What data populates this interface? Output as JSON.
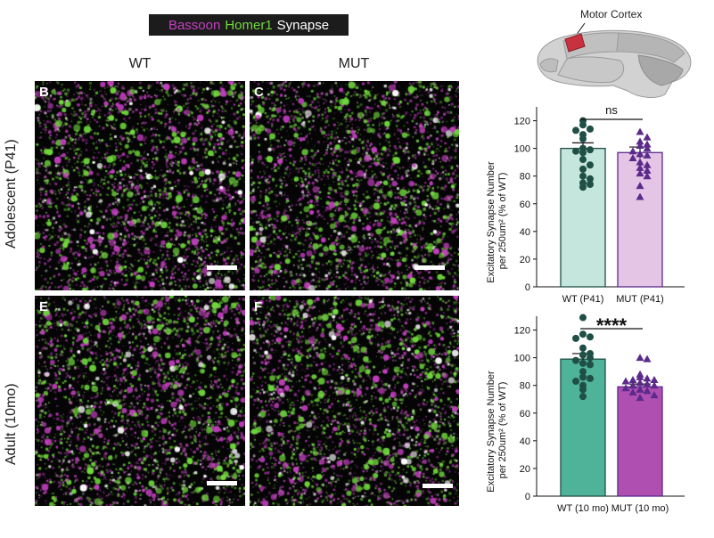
{
  "legend": {
    "bassoon": "Bassoon",
    "homer1": "Homer1",
    "synapse": "Synapse"
  },
  "columns": {
    "wt": "WT",
    "mut": "MUT"
  },
  "rows": {
    "adolescent": "Adolescent (P41)",
    "adult": "Adult (10mo)"
  },
  "panels": {
    "b": "B",
    "c": "C",
    "e": "E",
    "f": "F"
  },
  "brain": {
    "label": "Motor Cortex"
  },
  "colors": {
    "bassoon": "#c63fc2",
    "homer1": "#6fd93b",
    "synapse": "#ffffff",
    "wt_p41_fill": "#c5e6dd",
    "mut_p41_fill": "#e5c5e6",
    "wt_10mo_fill": "#4fb39a",
    "mut_10mo_fill": "#b04fb2",
    "wt_dot": "#1f4f45",
    "mut_dot": "#5b2a8a"
  },
  "chart_data": [
    {
      "type": "bar",
      "categories": [
        "WT (P41)",
        "MUT (P41)"
      ],
      "values": [
        100,
        97
      ],
      "errors": [
        4,
        4
      ],
      "ylabel_line1": "Excitatory Synapse Number",
      "ylabel_line2": "per 250um² (% of WT)",
      "ylim": [
        0,
        130
      ],
      "yticks": [
        "0",
        "20",
        "40",
        "60",
        "80",
        "100",
        "120"
      ],
      "significance": "ns",
      "points": [
        [
          120,
          117,
          114,
          113,
          110,
          107,
          100,
          99,
          98,
          97,
          92,
          88,
          85,
          80,
          78,
          75,
          74,
          72
        ],
        [
          112,
          108,
          105,
          103,
          102,
          100,
          98,
          96,
          95,
          93,
          90,
          88,
          86,
          84,
          82,
          80,
          73,
          65
        ]
      ]
    },
    {
      "type": "bar",
      "categories": [
        "WT (10 mo)",
        "MUT (10 mo)"
      ],
      "values": [
        99,
        79
      ],
      "errors": [
        4,
        2
      ],
      "ylabel_line1": "Excitatory Synapse Number",
      "ylabel_line2": "per 250um² (% of WT)",
      "ylim": [
        0,
        130
      ],
      "yticks": [
        "0",
        "20",
        "40",
        "60",
        "80",
        "100",
        "120"
      ],
      "significance": "****",
      "points": [
        [
          129,
          117,
          115,
          114,
          107,
          103,
          102,
          100,
          98,
          96,
          95,
          90,
          86,
          85,
          83,
          80,
          77,
          72
        ],
        [
          100,
          99,
          88,
          86,
          85,
          84,
          84,
          83,
          82,
          81,
          80,
          80,
          78,
          77,
          76,
          75,
          73,
          71
        ]
      ]
    }
  ]
}
